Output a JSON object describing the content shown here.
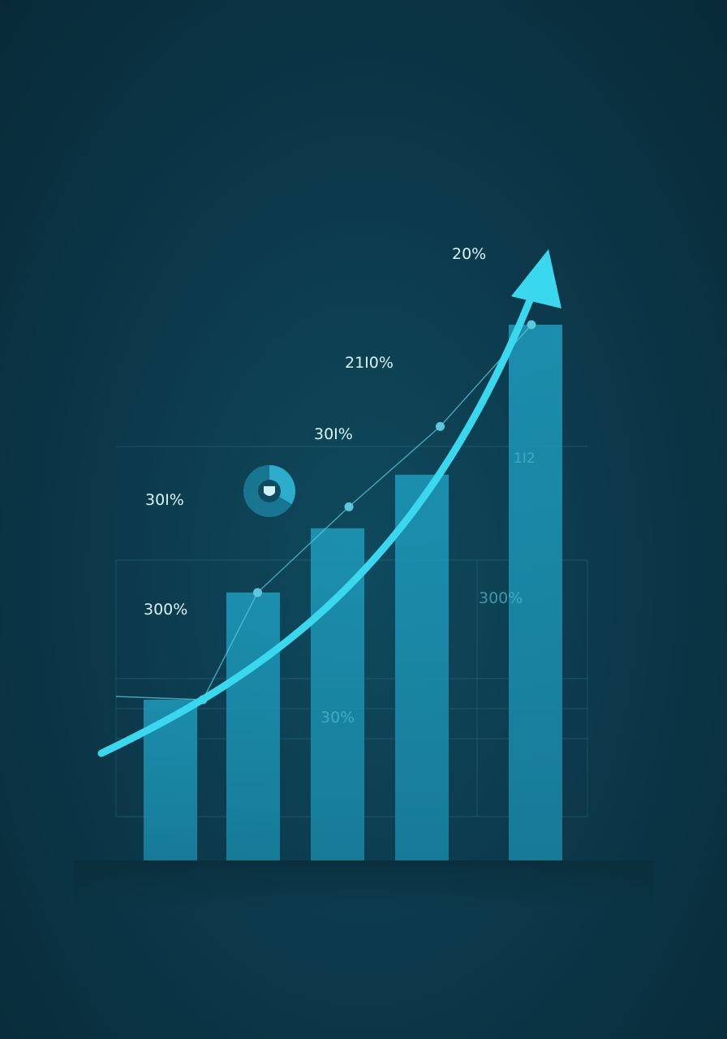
{
  "chart_data": {
    "type": "bar",
    "title": "",
    "xlabel": "",
    "ylabel": "",
    "grid": true,
    "categories": [
      "",
      "",
      "",
      "",
      ""
    ],
    "values": [
      30,
      50,
      62,
      72,
      100
    ],
    "ylim": [
      0,
      100
    ],
    "line_series": {
      "x": [
        0.4,
        1.0,
        2.0,
        3.0,
        4.0
      ],
      "values": [
        30,
        50,
        66,
        81,
        100
      ]
    },
    "trend_arrow": "up",
    "labels": [
      "20%",
      "21I0%",
      "30I%",
      "30I%",
      "300%",
      "300%",
      "30%"
    ],
    "bar_text": "1I2"
  },
  "colors": {
    "bar": "#1b8fb0",
    "arrow": "#3ad8ee",
    "line": "#5cc7dd",
    "grid": "#3b8aa0",
    "label": "#d8f4fb"
  },
  "icons": {
    "badge": "pie-badge-icon"
  }
}
